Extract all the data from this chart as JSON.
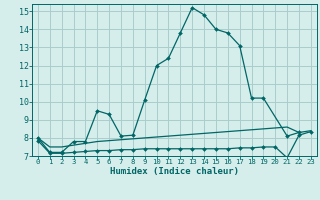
{
  "xlabel": "Humidex (Indice chaleur)",
  "bg_color": "#d5eeeb",
  "grid_color": "#aacccc",
  "line_color": "#006666",
  "xlim": [
    -0.5,
    23.5
  ],
  "ylim": [
    7,
    15.4
  ],
  "xticks": [
    0,
    1,
    2,
    3,
    4,
    5,
    6,
    7,
    8,
    9,
    10,
    11,
    12,
    13,
    14,
    15,
    16,
    17,
    18,
    19,
    20,
    21,
    22,
    23
  ],
  "yticks": [
    7,
    8,
    9,
    10,
    11,
    12,
    13,
    14,
    15
  ],
  "line1_x": [
    0,
    1,
    2,
    3,
    4,
    5,
    6,
    7,
    8,
    9,
    10,
    11,
    12,
    13,
    14,
    15,
    16,
    17,
    18,
    19,
    21,
    22
  ],
  "line1_y": [
    8.0,
    7.2,
    7.2,
    7.8,
    7.8,
    9.5,
    9.3,
    8.1,
    8.15,
    10.1,
    12.0,
    12.4,
    13.8,
    15.2,
    14.8,
    14.0,
    13.8,
    13.1,
    10.2,
    10.2,
    8.1,
    8.3
  ],
  "line2_x": [
    0,
    1,
    2,
    3,
    4,
    5,
    6,
    7,
    8,
    9,
    10,
    11,
    12,
    13,
    14,
    15,
    16,
    17,
    18,
    19,
    20,
    21,
    22,
    23
  ],
  "line2_y": [
    8.0,
    7.5,
    7.5,
    7.6,
    7.7,
    7.8,
    7.85,
    7.9,
    7.95,
    8.0,
    8.05,
    8.1,
    8.15,
    8.2,
    8.25,
    8.3,
    8.35,
    8.4,
    8.45,
    8.5,
    8.55,
    8.6,
    8.3,
    8.4
  ],
  "line3_x": [
    0,
    1,
    2,
    3,
    4,
    5,
    6,
    7,
    8,
    9,
    10,
    11,
    12,
    13,
    14,
    15,
    16,
    17,
    18,
    19,
    20,
    21,
    22,
    23
  ],
  "line3_y": [
    7.85,
    7.15,
    7.15,
    7.2,
    7.25,
    7.3,
    7.3,
    7.35,
    7.35,
    7.4,
    7.4,
    7.4,
    7.4,
    7.4,
    7.4,
    7.4,
    7.4,
    7.45,
    7.45,
    7.5,
    7.5,
    6.9,
    8.15,
    8.35
  ]
}
